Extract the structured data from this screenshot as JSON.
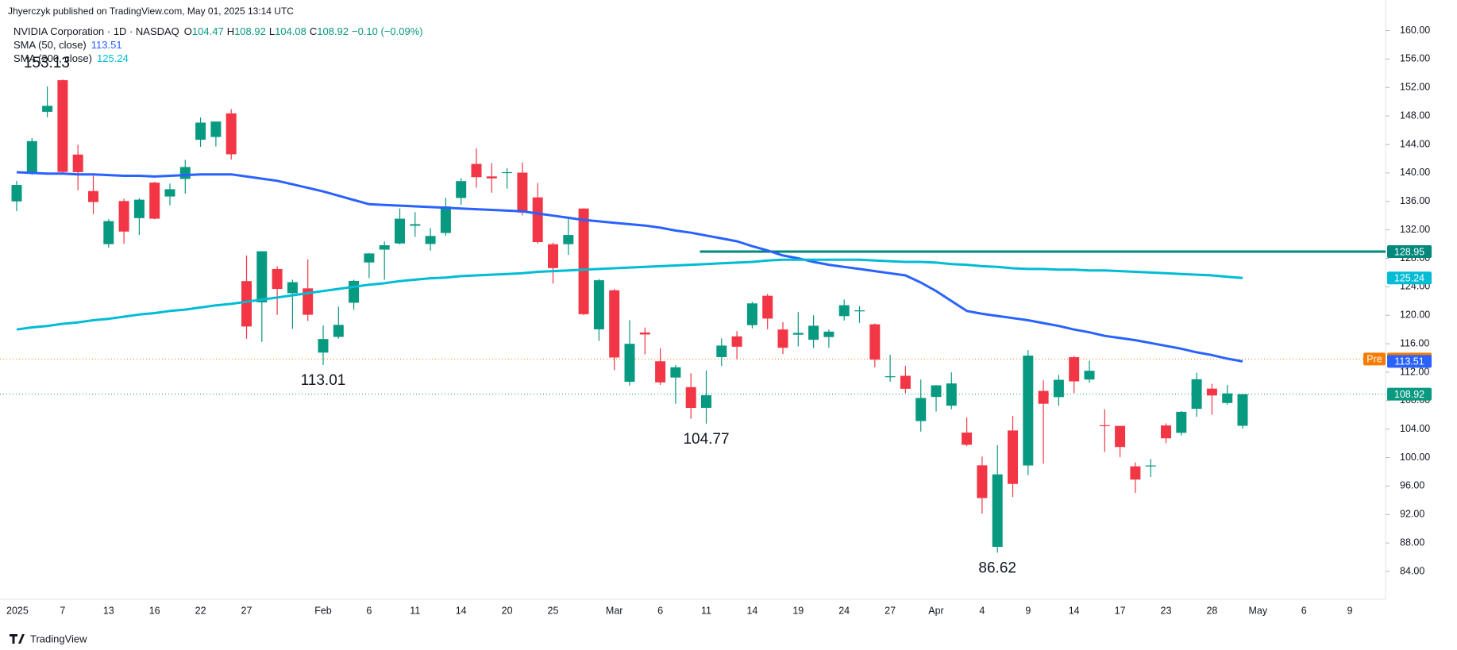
{
  "header": "Jhyerczyk published on TradingView.com, May 01, 2025 13:14 UTC",
  "footer": "TradingView",
  "chart_data": {
    "type": "candlestick",
    "title": "NVIDIA Corporation · 1D · NASDAQ",
    "quote": {
      "open_prefix": "O",
      "high_prefix": "H",
      "low_prefix": "L",
      "close_prefix": "C",
      "change": "−0.10 (−0.09%)"
    },
    "categories": [
      "2025",
      null,
      null,
      "7",
      null,
      null,
      "13",
      null,
      null,
      "16",
      null,
      null,
      "22",
      null,
      null,
      "27",
      null,
      null,
      null,
      null,
      "Feb",
      null,
      null,
      "6",
      null,
      null,
      "11",
      null,
      null,
      "14",
      null,
      null,
      "20",
      null,
      null,
      "25",
      null,
      null,
      null,
      "Mar",
      null,
      null,
      "6",
      null,
      null,
      "11",
      null,
      null,
      "14",
      null,
      null,
      "19",
      null,
      null,
      "24",
      null,
      null,
      "27",
      null,
      null,
      "Apr",
      null,
      null,
      "4",
      null,
      null,
      "9",
      null,
      null,
      "14",
      null,
      null,
      "17",
      null,
      null,
      "23",
      null,
      null,
      "28",
      null,
      null,
      "May",
      null,
      null,
      "6",
      null,
      null,
      "9"
    ],
    "open": [
      136.0,
      140.01,
      148.59,
      153.03,
      142.58,
      137.45,
      129.99,
      136.05,
      133.65,
      138.64,
      136.69,
      139.16,
      144.66,
      145.05,
      148.37,
      124.8,
      121.81,
      126.5,
      123.1,
      123.78,
      114.75,
      116.96,
      121.76,
      127.42,
      129.22,
      130.09,
      132.58,
      130.02,
      131.56,
      136.48,
      141.27,
      139.51,
      140.03,
      140.04,
      136.56,
      129.98,
      129.99,
      135.0,
      118.02,
      123.51,
      110.65,
      117.58,
      113.53,
      111.25,
      109.9,
      106.99,
      114.12,
      117.03,
      118.61,
      122.74,
      118.0,
      117.27,
      116.55,
      116.94,
      119.88,
      120.55,
      118.73,
      111.35,
      111.49,
      105.13,
      108.52,
      107.29,
      103.51,
      98.91,
      87.46,
      103.81,
      98.89,
      109.37,
      108.5,
      114.11,
      110.97,
      104.55,
      104.45,
      98.77,
      98.78,
      104.52,
      103.48,
      106.85,
      109.69,
      107.67,
      104.47,
      null,
      null,
      null,
      null,
      null,
      null,
      null
    ],
    "high": [
      138.88,
      144.9,
      152.16,
      153.13,
      143.95,
      139.92,
      133.49,
      136.38,
      136.45,
      138.75,
      138.5,
      141.83,
      147.79,
      147.23,
      148.97,
      128.4,
      129.0,
      126.89,
      125.0,
      127.85,
      118.57,
      121.2,
      125.0,
      128.77,
      130.37,
      135.0,
      134.48,
      132.24,
      136.5,
      139.25,
      143.44,
      141.36,
      140.67,
      141.46,
      138.59,
      130.2,
      133.73,
      135.01,
      125.09,
      123.7,
      119.31,
      118.28,
      115.35,
      113.0,
      111.85,
      112.23,
      116.77,
      117.76,
      121.89,
      122.99,
      119.02,
      120.45,
      120.0,
      117.99,
      122.22,
      121.29,
      118.84,
      114.45,
      112.87,
      110.96,
      110.2,
      111.98,
      105.63,
      100.13,
      101.75,
      105.85,
      115.1,
      110.86,
      111.63,
      114.29,
      113.62,
      106.8,
      104.47,
      99.33,
      99.81,
      104.8,
      106.54,
      111.92,
      110.37,
      110.2,
      108.92,
      null,
      null,
      null,
      null,
      null,
      null,
      null
    ],
    "low": [
      134.63,
      139.73,
      147.82,
      140.01,
      137.56,
      134.22,
      129.51,
      130.05,
      131.29,
      133.49,
      135.46,
      137.09,
      143.67,
      143.72,
      141.88,
      116.7,
      116.25,
      120.05,
      118.1,
      119.19,
      113.01,
      116.7,
      120.76,
      125.21,
      125.0,
      129.96,
      131.02,
      129.08,
      131.17,
      135.5,
      137.93,
      137.22,
      137.78,
      134.03,
      130.08,
      124.44,
      128.49,
      120.01,
      116.4,
      112.28,
      110.11,
      114.51,
      110.22,
      107.56,
      105.46,
      104.77,
      112.88,
      113.79,
      118.15,
      118.03,
      114.54,
      115.63,
      115.39,
      115.43,
      119.26,
      118.93,
      112.7,
      110.66,
      109.07,
      103.65,
      106.47,
      106.79,
      101.6,
      92.11,
      86.62,
      94.46,
      97.53,
      99.15,
      107.29,
      109.07,
      110.5,
      100.8,
      100.05,
      95.04,
      97.28,
      102.02,
      103.11,
      105.73,
      106.02,
      107.44,
      104.08,
      null,
      null,
      null,
      null,
      null,
      null,
      null
    ],
    "close": [
      138.31,
      144.47,
      149.43,
      140.14,
      140.11,
      135.91,
      133.23,
      131.76,
      136.24,
      133.57,
      137.71,
      140.83,
      147.07,
      147.22,
      142.62,
      118.42,
      128.99,
      123.7,
      124.65,
      120.07,
      116.66,
      118.65,
      124.83,
      128.68,
      129.84,
      133.57,
      132.8,
      131.14,
      135.29,
      138.85,
      139.4,
      139.23,
      140.11,
      134.43,
      130.28,
      126.63,
      131.28,
      120.15,
      124.92,
      114.06,
      115.99,
      117.3,
      110.57,
      112.69,
      106.98,
      108.76,
      115.74,
      115.58,
      121.67,
      119.53,
      115.43,
      117.52,
      118.53,
      117.7,
      121.41,
      120.69,
      113.76,
      111.43,
      109.67,
      108.38,
      110.15,
      110.42,
      101.8,
      94.31,
      97.64,
      96.3,
      114.33,
      107.57,
      110.93,
      110.71,
      112.2,
      104.49,
      101.49,
      96.91,
      98.89,
      102.71,
      106.43,
      111.01,
      108.73,
      109.02,
      108.92,
      null,
      null,
      null,
      null,
      null,
      null,
      null
    ],
    "up_color": "#089981",
    "down_color": "#f23645",
    "series": [
      {
        "name": "SMA (50, close)",
        "color": "#2962ff",
        "values": [
          140.1,
          140.0,
          139.9,
          139.9,
          139.8,
          139.8,
          139.7,
          139.6,
          139.6,
          139.5,
          139.6,
          139.7,
          139.8,
          139.8,
          139.8,
          139.5,
          139.2,
          138.9,
          138.4,
          137.9,
          137.4,
          136.8,
          136.2,
          135.6,
          135.5,
          135.4,
          135.3,
          135.2,
          135.1,
          135.0,
          134.9,
          134.8,
          134.7,
          134.6,
          134.3,
          134.0,
          133.7,
          133.4,
          133.2,
          133.0,
          132.8,
          132.6,
          132.3,
          131.9,
          131.6,
          131.2,
          130.8,
          130.4,
          129.7,
          129.1,
          128.4,
          128.0,
          127.5,
          127.1,
          126.8,
          126.5,
          126.2,
          125.9,
          125.6,
          124.6,
          123.4,
          122.0,
          120.6,
          120.2,
          119.9,
          119.6,
          119.3,
          118.9,
          118.5,
          118.0,
          117.6,
          117.1,
          116.8,
          116.5,
          116.1,
          115.7,
          115.3,
          114.8,
          114.4,
          113.9,
          113.51,
          null,
          null,
          null,
          null,
          null,
          null,
          null
        ]
      },
      {
        "name": "SMA (200, close)",
        "color": "#00bcd4",
        "values": [
          118.0,
          118.3,
          118.5,
          118.8,
          119.0,
          119.3,
          119.5,
          119.8,
          120.1,
          120.3,
          120.6,
          120.8,
          121.1,
          121.4,
          121.6,
          121.9,
          122.2,
          122.5,
          122.8,
          123.1,
          123.4,
          123.7,
          124.0,
          124.3,
          124.5,
          124.8,
          125.0,
          125.2,
          125.3,
          125.5,
          125.6,
          125.7,
          125.8,
          125.9,
          126.1,
          126.2,
          126.3,
          126.4,
          126.5,
          126.6,
          126.7,
          126.8,
          126.9,
          127.0,
          127.1,
          127.2,
          127.3,
          127.4,
          127.5,
          127.7,
          127.8,
          127.8,
          127.8,
          127.8,
          127.8,
          127.8,
          127.7,
          127.6,
          127.5,
          127.5,
          127.4,
          127.2,
          127.1,
          126.9,
          126.8,
          126.6,
          126.5,
          126.5,
          126.4,
          126.4,
          126.3,
          126.3,
          126.2,
          126.1,
          126.0,
          125.9,
          125.8,
          125.7,
          125.6,
          125.4,
          125.24,
          null,
          null,
          null,
          null,
          null,
          null,
          null
        ]
      }
    ],
    "level": {
      "value": 128.95,
      "color": "#00897b"
    },
    "pre_market": {
      "label": "Pre",
      "value": 113.85,
      "color": "#f57c00"
    },
    "ylim": [
      80.1,
      164.3
    ],
    "yticks": [
      {
        "value": 84,
        "label": "84.00"
      },
      {
        "value": 88,
        "label": "88.00"
      },
      {
        "value": 92,
        "label": "92.00"
      },
      {
        "value": 96,
        "label": "96.00"
      },
      {
        "value": 100,
        "label": "100.00"
      },
      {
        "value": 104,
        "label": "104.00"
      },
      {
        "value": 108,
        "label": "108.00"
      },
      {
        "value": 112,
        "label": "112.00"
      },
      {
        "value": 116,
        "label": "116.00"
      },
      {
        "value": 120,
        "label": "120.00"
      },
      {
        "value": 124,
        "label": "124.00"
      },
      {
        "value": 128,
        "label": "128.00"
      },
      {
        "value": 132,
        "label": "132.00"
      },
      {
        "value": 136,
        "label": "136.00"
      },
      {
        "value": 140,
        "label": "140.00"
      },
      {
        "value": 144,
        "label": "144.00"
      },
      {
        "value": 148,
        "label": "148.00"
      },
      {
        "value": 152,
        "label": "152.00"
      },
      {
        "value": 156,
        "label": "156.00"
      },
      {
        "value": 160,
        "label": "160.00"
      }
    ],
    "grid": false
  }
}
